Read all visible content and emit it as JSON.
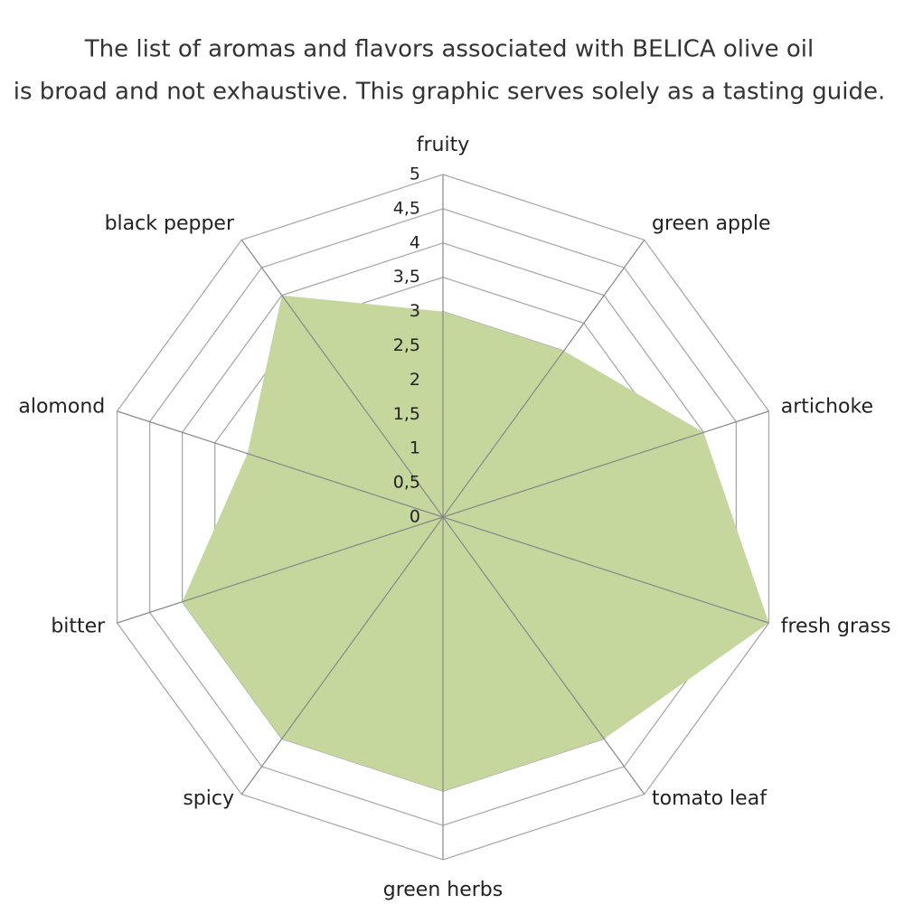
{
  "chart_data": {
    "type": "radar",
    "title": [
      "The list of aromas and flavors associated with BELICA olive oil",
      "is broad and not exhaustive. This graphic serves solely as a tasting guide."
    ],
    "categories": [
      "fruity",
      "green apple",
      "artichoke",
      "fresh grass",
      "tomato leaf",
      "green herbs",
      "spicy",
      "bitter",
      "alomond",
      "black pepper"
    ],
    "values": [
      3,
      3,
      4,
      5,
      4,
      4,
      4,
      4,
      3,
      4
    ],
    "color": "#c5d79d",
    "rlim": [
      0,
      5
    ],
    "rticks": [
      0,
      {
        "value": 0.5,
        "label": "0,5"
      },
      1,
      {
        "value": 1.5,
        "label": "1,5"
      },
      2,
      {
        "value": 2.5,
        "label": "2,5"
      },
      3,
      {
        "value": 3.5,
        "label": "3,5"
      },
      4,
      {
        "value": 4.5,
        "label": "4,5"
      },
      5
    ],
    "grid": true
  }
}
